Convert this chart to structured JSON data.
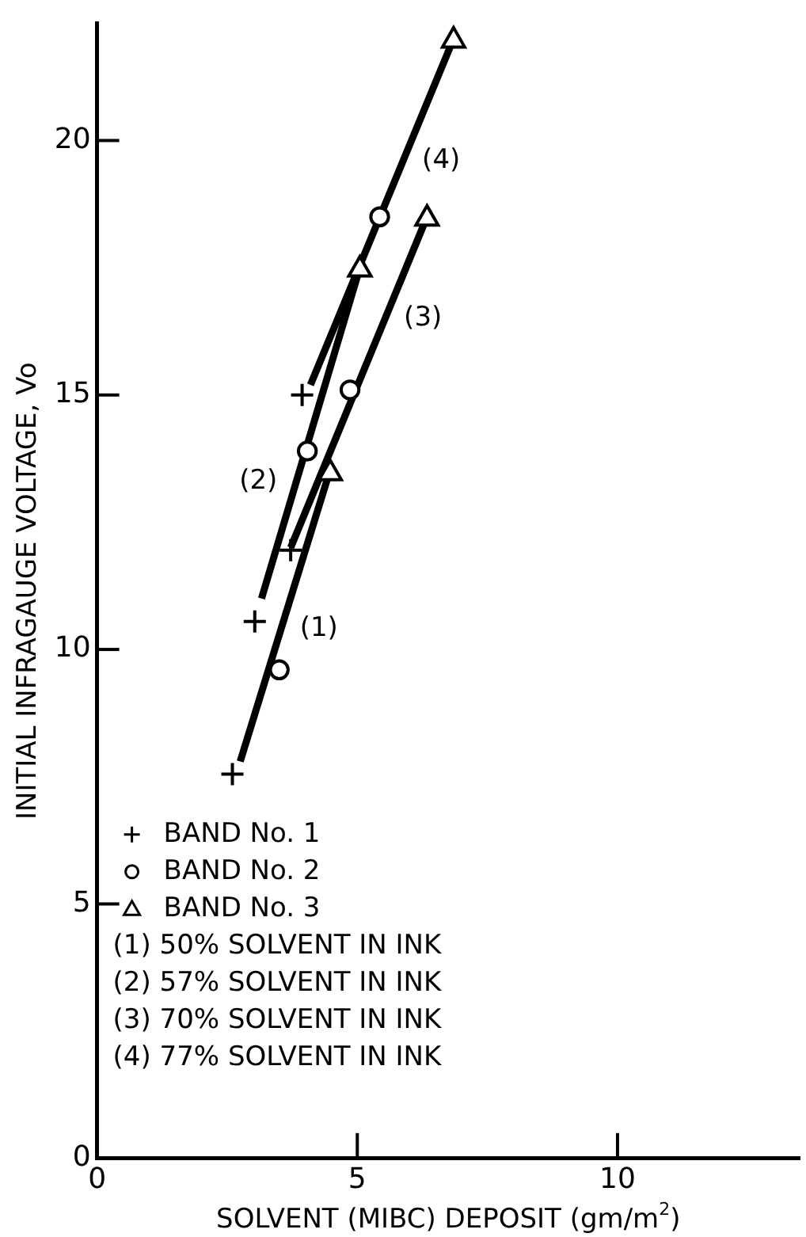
{
  "chart_data": {
    "type": "scatter",
    "xlabel": "SOLVENT (MIBC) DEPOSIT (gm/m$^{2}$)",
    "ylabel": "INITIAL INFRAGAUGE VOLTAGE, Vo",
    "xlim": [
      0,
      13.5
    ],
    "ylim": [
      0,
      22.3
    ],
    "xticks": [
      0,
      5,
      10
    ],
    "yticks": [
      0,
      5,
      10,
      15,
      20
    ],
    "grid": false,
    "legend": "bottom left",
    "series": [
      {
        "name": "BAND No. 1",
        "marker": "cross",
        "color": "#000000",
        "x": [
          2.6,
          3.03,
          3.72,
          3.94
        ],
        "values": [
          7.55,
          10.55,
          11.95,
          15.0
        ]
      },
      {
        "name": "BAND No. 2",
        "marker": "circle",
        "color": "#000000",
        "x": [
          3.5,
          4.04,
          4.86,
          5.43
        ],
        "values": [
          9.6,
          13.9,
          15.1,
          18.5
        ]
      },
      {
        "name": "BAND No. 3",
        "marker": "triangle",
        "color": "#000000",
        "x": [
          4.48,
          5.05,
          6.34,
          6.85
        ],
        "values": [
          13.5,
          17.5,
          18.5,
          22.0
        ]
      },
      {
        "type": "line",
        "marker": "none",
        "color": "#000000",
        "x": [
          2.75,
          4.5
        ],
        "values": [
          7.8,
          13.6
        ]
      },
      {
        "type": "line",
        "marker": "none",
        "color": "#000000",
        "x": [
          3.16,
          5.05
        ],
        "values": [
          11.0,
          17.5
        ]
      },
      {
        "type": "line",
        "marker": "none",
        "color": "#000000",
        "x": [
          3.72,
          6.34
        ],
        "values": [
          12.0,
          18.5
        ]
      },
      {
        "type": "line",
        "marker": "none",
        "color": "#000000",
        "x": [
          4.1,
          6.85
        ],
        "values": [
          15.2,
          22.0
        ]
      }
    ],
    "annotations": [
      {
        "text": "(1)",
        "x": 3.53,
        "y": 10.4
      },
      {
        "text": "(2)",
        "x": 3.83,
        "y": 13.3
      },
      {
        "text": "(3)",
        "x": 5.53,
        "y": 16.5
      },
      {
        "text": "(4)",
        "x": 5.88,
        "y": 19.6
      },
      "(1) 50% SOLVENT IN INK",
      "(2) 57% SOLVENT IN INK",
      "(3) 70% SOLVENT IN INK",
      "(4) 77% SOLVENT IN INK"
    ]
  }
}
